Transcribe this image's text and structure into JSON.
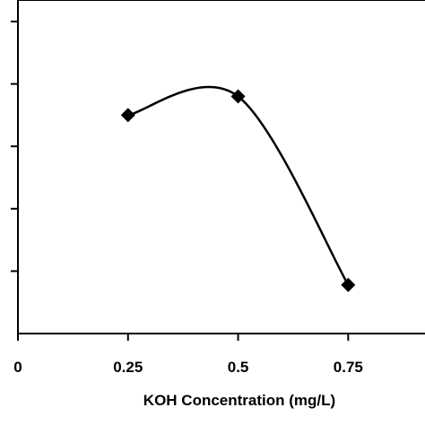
{
  "chart_data": {
    "type": "scatter",
    "title": "",
    "xlabel": "KOH Concentration (mg/L)",
    "ylabel": "",
    "x_ticks": [
      "0",
      "0.25",
      "0.5",
      "0.75"
    ],
    "xlim": [
      0,
      0.9
    ],
    "ylim": [
      0,
      5
    ],
    "y_tick_count": 5,
    "grid": false,
    "series": [
      {
        "x": [
          0.25,
          0.5,
          0.75
        ],
        "y": [
          3.5,
          3.8,
          0.78
        ],
        "marker": "diamond",
        "line": "smooth",
        "color": "#000000"
      }
    ]
  }
}
